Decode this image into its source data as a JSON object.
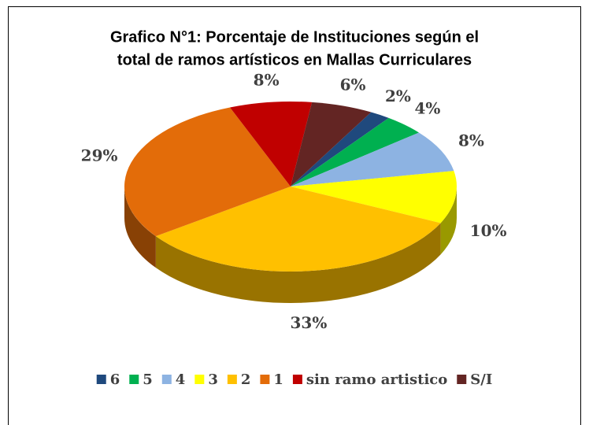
{
  "chart_data": {
    "type": "pie3d",
    "title": [
      "Grafico N°1: Porcentaje de Instituciones según el",
      "total de ramos artísticos en Mallas Curriculares"
    ],
    "categories": [
      "6",
      "5",
      "4",
      "3",
      "2",
      "1",
      "sin ramo artistico",
      "S/I"
    ],
    "values": [
      2,
      4,
      8,
      10,
      33,
      29,
      8,
      6
    ],
    "value_labels": [
      "2%",
      "4%",
      "8%",
      "10%",
      "33%",
      "29%",
      "8%",
      "6%"
    ],
    "colors": [
      "#1f497d",
      "#00b050",
      "#8db3e2",
      "#ffff00",
      "#ffc000",
      "#e36c09",
      "#c00000",
      "#632523"
    ],
    "legend": "bottom"
  }
}
